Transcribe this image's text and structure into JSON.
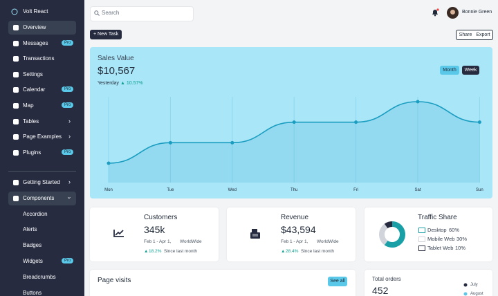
{
  "sidebar": {
    "brand": "Volt React",
    "groups": [
      {
        "items": [
          {
            "label": "Overview",
            "active": true
          },
          {
            "label": "Messages",
            "badge": "Pro"
          },
          {
            "label": "Transactions"
          },
          {
            "label": "Settings"
          },
          {
            "label": "Calendar",
            "badge": "Pro"
          },
          {
            "label": "Map",
            "badge": "Pro"
          },
          {
            "label": "Tables",
            "arrow": "right"
          },
          {
            "label": "Page Examples",
            "arrow": "right"
          },
          {
            "label": "Plugins",
            "badge": "Pro"
          }
        ]
      },
      {
        "items": [
          {
            "label": "Getting Started",
            "arrow": "right"
          },
          {
            "label": "Components",
            "arrow": "down",
            "active": true
          },
          {
            "label": "Accordion",
            "sub": true
          },
          {
            "label": "Alerts",
            "sub": true
          },
          {
            "label": "Badges",
            "sub": true
          },
          {
            "label": "Widgets",
            "sub": true,
            "badge": "Pro"
          },
          {
            "label": "Breadcrumbs",
            "sub": true
          },
          {
            "label": "Buttons",
            "sub": true
          }
        ]
      }
    ]
  },
  "topbar": {
    "search_placeholder": "Search",
    "user_name": "Bonnie Green"
  },
  "actions": {
    "new_task": "New Task",
    "share": "Share",
    "export": "Export"
  },
  "sales": {
    "title": "Sales Value",
    "value": "$10,567",
    "period": "Yesterday",
    "change": "10.57%",
    "toggles": [
      "Month",
      "Week"
    ],
    "chart": {
      "type": "line",
      "categories": [
        "Mon",
        "Tue",
        "Wed",
        "Thu",
        "Fri",
        "Sat",
        "Sun"
      ],
      "values": [
        10,
        20,
        20,
        30,
        30,
        40,
        30
      ],
      "color": "#1a9dc0"
    }
  },
  "cards": [
    {
      "title": "Customers",
      "value": "345k",
      "range": "Feb 1 - Apr 1,",
      "region": "WorldWide",
      "change": "18.2%",
      "note": "Since last month"
    },
    {
      "title": "Revenue",
      "value": "$43,594",
      "range": "Feb 1 - Apr 1,",
      "region": "WorldWide",
      "change": "28.4%",
      "note": "Since last month"
    }
  ],
  "traffic": {
    "title": "Traffic Share",
    "type": "pie",
    "series": [
      {
        "name": "Desktop",
        "value": 60,
        "value_label": "60%",
        "color": "#18a0a6"
      },
      {
        "name": "Mobile Web",
        "value": 30,
        "value_label": "30%",
        "color": "#d1d5db"
      },
      {
        "name": "Tablet Web",
        "value": 10,
        "value_label": "10%",
        "color": "#262b40"
      }
    ]
  },
  "page_visits": {
    "title": "Page visits",
    "button": "See all"
  },
  "orders": {
    "title": "Total orders",
    "value": "452",
    "legend": [
      "July",
      "August"
    ]
  }
}
